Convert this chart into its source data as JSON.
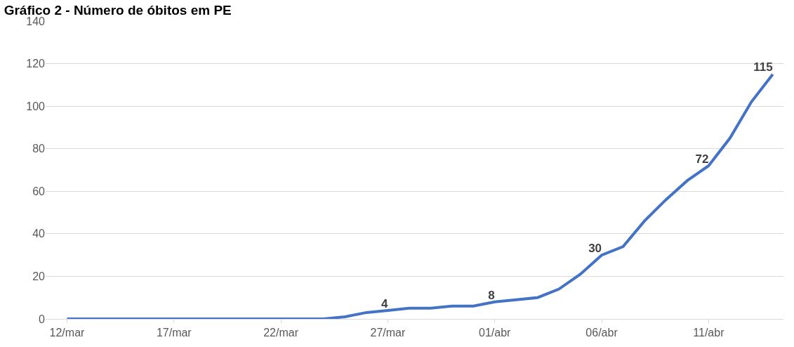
{
  "chart_data": {
    "type": "line",
    "title": "Gráfico 2 - Número de óbitos em PE",
    "categories": [
      "12/mar",
      null,
      null,
      null,
      null,
      "17/mar",
      null,
      null,
      null,
      null,
      "22/mar",
      null,
      null,
      null,
      null,
      "27/mar",
      null,
      null,
      null,
      null,
      "01/abr",
      null,
      null,
      null,
      null,
      "06/abr",
      null,
      null,
      null,
      null,
      "11/abr",
      null,
      null,
      null
    ],
    "series": [
      {
        "color": "#4472c4",
        "values": [
          0,
          0,
          0,
          0,
          0,
          0,
          0,
          0,
          0,
          0,
          0,
          0,
          0,
          1,
          3,
          4,
          5,
          5,
          6,
          6,
          8,
          9,
          10,
          14,
          21,
          30,
          34,
          46,
          56,
          65,
          72,
          85,
          102,
          115
        ],
        "value_labels": [
          null,
          null,
          null,
          null,
          null,
          null,
          null,
          null,
          null,
          null,
          null,
          null,
          null,
          null,
          null,
          "4",
          null,
          null,
          null,
          null,
          "8",
          null,
          null,
          null,
          null,
          "30",
          null,
          null,
          null,
          null,
          "72",
          null,
          null,
          "115"
        ]
      }
    ],
    "ylim": [
      0,
      140
    ],
    "yticks": [
      0,
      20,
      40,
      60,
      80,
      100,
      120,
      140
    ],
    "grid": "y",
    "marker": "none",
    "line_style": "solid"
  }
}
